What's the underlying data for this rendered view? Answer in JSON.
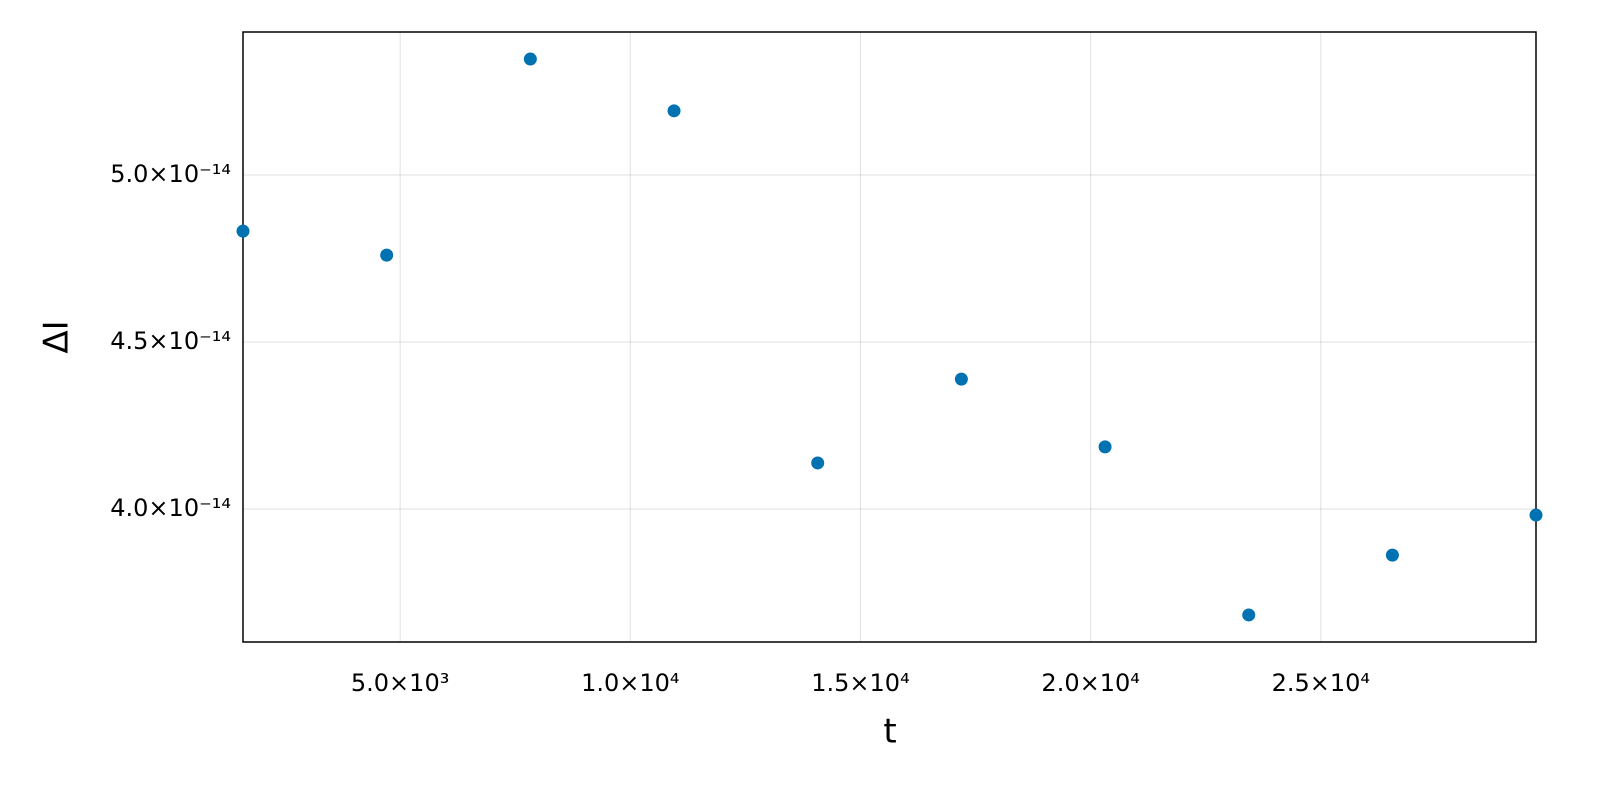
{
  "chart_data": {
    "type": "scatter",
    "x_label": "t",
    "y_label": "ΔI",
    "series": [
      {
        "color": "#0072b2",
        "x": [
          1587,
          4708,
          7829,
          10950,
          14071,
          17192,
          20313,
          23434,
          26555,
          29674
        ],
        "values": [
          4.832e-14,
          4.76e-14,
          5.347e-14,
          5.192e-14,
          4.138e-14,
          4.389e-14,
          4.186e-14,
          3.683e-14,
          3.862e-14,
          3.982e-14
        ]
      }
    ],
    "xlim": [
      1587,
      29674
    ],
    "xticks": [
      {
        "value": 5000,
        "label": "5.0×10³"
      },
      {
        "value": 10000,
        "label": "1.0×10⁴"
      },
      {
        "value": 15000,
        "label": "1.5×10⁴"
      },
      {
        "value": 20000,
        "label": "2.0×10⁴"
      },
      {
        "value": 25000,
        "label": "2.5×10⁴"
      }
    ],
    "ylim": [
      3.602e-14,
      5.428e-14
    ],
    "yticks": [
      {
        "value": 4e-14,
        "label": "4.0×10⁻¹⁴"
      },
      {
        "value": 4.5e-14,
        "label": "4.5×10⁻¹⁴"
      },
      {
        "value": 5e-14,
        "label": "5.0×10⁻¹⁴"
      }
    ],
    "grid": true
  }
}
